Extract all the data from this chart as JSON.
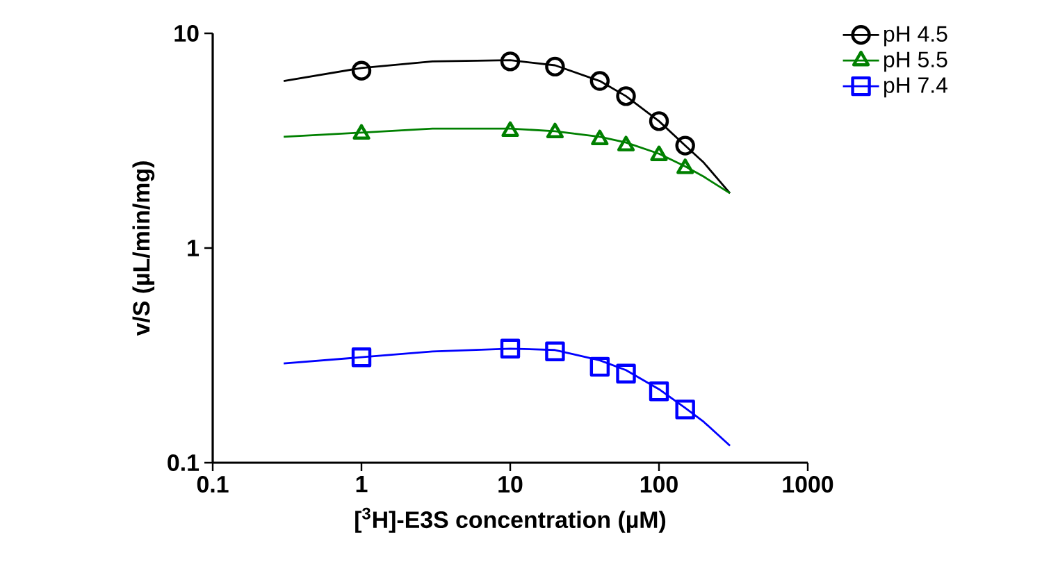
{
  "chart_data": {
    "type": "scatter",
    "xlabel": "[$^{3}$H]-E3S concentration (µM)",
    "ylabel": "v/S (µL/min/mg)",
    "log": "xy",
    "xlim": [
      0.1,
      1000
    ],
    "ylim": [
      0.1,
      10
    ],
    "xticks": [
      0.1,
      1,
      10,
      100,
      1000
    ],
    "yticks": [
      0.1,
      1,
      10
    ],
    "legend": "top right",
    "series": [
      {
        "name": "pH 4.5",
        "color": "#000000",
        "marker": "circle",
        "x": [
          1,
          10,
          20,
          40,
          60,
          100,
          150
        ],
        "values": [
          6.7,
          7.4,
          7.0,
          6.0,
          5.1,
          3.9,
          3.0
        ]
      },
      {
        "name": "pH 5.5",
        "color": "#008000",
        "marker": "triangle",
        "x": [
          1,
          10,
          20,
          40,
          60,
          100,
          150
        ],
        "values": [
          3.4,
          3.5,
          3.45,
          3.2,
          3.0,
          2.7,
          2.35
        ]
      },
      {
        "name": "pH 7.4",
        "color": "#0000ff",
        "marker": "square",
        "x": [
          1,
          10,
          20,
          40,
          60,
          100,
          150
        ],
        "values": [
          0.31,
          0.34,
          0.33,
          0.28,
          0.26,
          0.215,
          0.177
        ]
      },
      {
        "type": "line",
        "color": "#000000",
        "marker": "none",
        "x": [
          0.3,
          1,
          3,
          10,
          20,
          40,
          60,
          100,
          150,
          200,
          300
        ],
        "values": [
          6.0,
          6.9,
          7.4,
          7.5,
          7.1,
          6.0,
          5.1,
          3.9,
          3.0,
          2.5,
          1.8
        ]
      },
      {
        "type": "line",
        "color": "#008000",
        "marker": "none",
        "x": [
          0.3,
          1,
          3,
          10,
          20,
          40,
          60,
          100,
          150,
          200,
          300
        ],
        "values": [
          3.3,
          3.45,
          3.6,
          3.6,
          3.5,
          3.3,
          3.1,
          2.75,
          2.4,
          2.15,
          1.8
        ]
      },
      {
        "type": "line",
        "color": "#0000ff",
        "marker": "none",
        "x": [
          0.3,
          1,
          3,
          10,
          20,
          40,
          60,
          100,
          150,
          200,
          300
        ],
        "values": [
          0.29,
          0.31,
          0.33,
          0.34,
          0.335,
          0.3,
          0.27,
          0.22,
          0.18,
          0.155,
          0.12
        ]
      }
    ]
  }
}
